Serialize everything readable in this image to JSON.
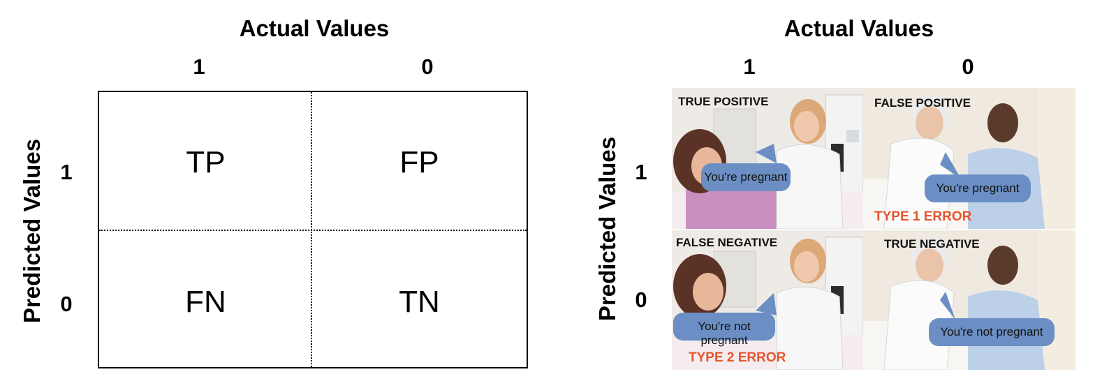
{
  "left_diagram": {
    "header": "Actual Values",
    "col_labels": [
      "1",
      "0"
    ],
    "row_axis_label": "Predicted Values",
    "row_labels": [
      "1",
      "0"
    ],
    "cells": [
      "TP",
      "FP",
      "FN",
      "TN"
    ]
  },
  "right_diagram": {
    "header": "Actual Values",
    "col_labels": [
      "1",
      "0"
    ],
    "row_axis_label": "Predicted Values",
    "row_labels": [
      "1",
      "0"
    ],
    "panels": [
      {
        "caption": "TRUE POSITIVE",
        "speech": "You're pregnant",
        "error": ""
      },
      {
        "caption": "FALSE POSITIVE",
        "speech": "You're pregnant",
        "error": "TYPE 1 ERROR"
      },
      {
        "caption": "FALSE NEGATIVE",
        "speech": "You're not pregnant",
        "error": "TYPE 2 ERROR"
      },
      {
        "caption": "TRUE NEGATIVE",
        "speech": "You're not pregnant",
        "error": ""
      }
    ]
  },
  "colors": {
    "bubble": "#6b8fc4",
    "error": "#e4542d",
    "line": "#000000"
  }
}
